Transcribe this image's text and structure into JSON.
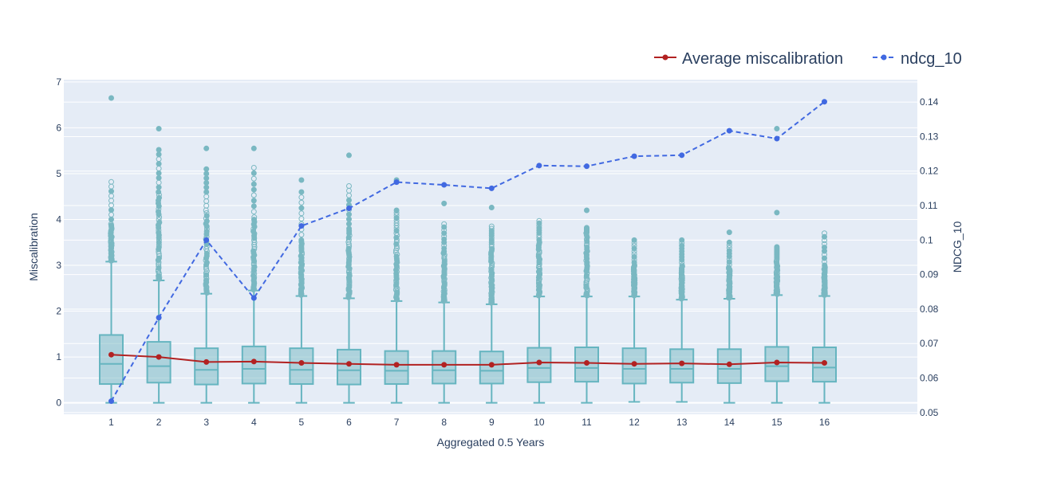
{
  "chart_data": {
    "type": "box",
    "xlabel": "Aggregated 0.5 Years",
    "ylabel": "Miscalibration",
    "y2label": "NDCG_10",
    "categories": [
      1,
      2,
      3,
      4,
      5,
      6,
      7,
      8,
      9,
      10,
      11,
      12,
      13,
      14,
      15,
      16
    ],
    "ylim": [
      -0.25,
      7.05
    ],
    "y2lim": [
      0.0495,
      0.1465
    ],
    "yticks": [
      0,
      1,
      2,
      3,
      4,
      5,
      6,
      7
    ],
    "y2ticks": [
      0.05,
      0.06,
      0.07,
      0.08,
      0.09,
      0.1,
      0.11,
      0.12,
      0.13,
      0.14
    ],
    "y2tick_labels": [
      "0.05",
      "0.06",
      "0.07",
      "0.08",
      "0.09",
      "0.1",
      "0.11",
      "0.12",
      "0.13",
      "0.14"
    ],
    "grid": true,
    "legend_position": "top-right",
    "colors": {
      "box": "#7ab8c2",
      "box_line": "#66b5c0",
      "box_fill": "rgba(118,184,194,0.5)",
      "avg": "#b22222",
      "ndcg": "#4169e1",
      "plot_bg": "#e5ecf6"
    },
    "boxes": [
      {
        "q1": 0.41,
        "median": 0.85,
        "q3": 1.48,
        "low": 0.0,
        "high": 3.08,
        "out_start": 3.1,
        "out_dense_end": 3.9,
        "out_max": 4.82,
        "extreme": 6.65
      },
      {
        "q1": 0.44,
        "median": 0.8,
        "q3": 1.33,
        "low": 0.0,
        "high": 2.67,
        "out_start": 2.7,
        "out_dense_end": 4.6,
        "out_max": 5.52,
        "extreme": 5.98
      },
      {
        "q1": 0.4,
        "median": 0.72,
        "q3": 1.19,
        "low": 0.0,
        "high": 2.38,
        "out_start": 2.4,
        "out_dense_end": 4.2,
        "out_max": 5.1,
        "extreme": 5.55
      },
      {
        "q1": 0.42,
        "median": 0.74,
        "q3": 1.23,
        "low": 0.0,
        "high": 2.45,
        "out_start": 2.47,
        "out_dense_end": 4.05,
        "out_max": 5.13,
        "extreme": 5.55
      },
      {
        "q1": 0.41,
        "median": 0.72,
        "q3": 1.19,
        "low": 0.0,
        "high": 2.33,
        "out_start": 2.35,
        "out_dense_end": 3.55,
        "out_max": 4.6,
        "extreme": 4.86
      },
      {
        "q1": 0.4,
        "median": 0.71,
        "q3": 1.16,
        "low": 0.0,
        "high": 2.28,
        "out_start": 2.3,
        "out_dense_end": 3.8,
        "out_max": 4.73,
        "extreme": 5.4
      },
      {
        "q1": 0.41,
        "median": 0.7,
        "q3": 1.13,
        "low": 0.0,
        "high": 2.22,
        "out_start": 2.25,
        "out_dense_end": 3.7,
        "out_max": 4.2,
        "extreme": 4.86
      },
      {
        "q1": 0.42,
        "median": 0.71,
        "q3": 1.13,
        "low": 0.0,
        "high": 2.19,
        "out_start": 2.22,
        "out_dense_end": 3.3,
        "out_max": 3.9,
        "extreme": 4.35
      },
      {
        "q1": 0.42,
        "median": 0.7,
        "q3": 1.12,
        "low": 0.0,
        "high": 2.15,
        "out_start": 2.18,
        "out_dense_end": 3.4,
        "out_max": 3.85,
        "extreme": 4.26
      },
      {
        "q1": 0.45,
        "median": 0.76,
        "q3": 1.2,
        "low": 0.0,
        "high": 2.32,
        "out_start": 2.34,
        "out_dense_end": 3.5,
        "out_max": 3.97,
        "extreme": 3.97
      },
      {
        "q1": 0.46,
        "median": 0.76,
        "q3": 1.21,
        "low": 0.0,
        "high": 2.32,
        "out_start": 2.34,
        "out_dense_end": 3.7,
        "out_max": 3.82,
        "extreme": 4.2
      },
      {
        "q1": 0.42,
        "median": 0.74,
        "q3": 1.19,
        "low": 0.02,
        "high": 2.32,
        "out_start": 2.34,
        "out_dense_end": 3.0,
        "out_max": 3.55,
        "extreme": 3.55
      },
      {
        "q1": 0.44,
        "median": 0.74,
        "q3": 1.17,
        "low": 0.02,
        "high": 2.25,
        "out_start": 2.27,
        "out_dense_end": 3.0,
        "out_max": 3.55,
        "extreme": 3.55
      },
      {
        "q1": 0.43,
        "median": 0.74,
        "q3": 1.17,
        "low": 0.0,
        "high": 2.27,
        "out_start": 2.29,
        "out_dense_end": 2.95,
        "out_max": 3.5,
        "extreme": 3.72
      },
      {
        "q1": 0.47,
        "median": 0.8,
        "q3": 1.22,
        "low": 0.0,
        "high": 2.35,
        "out_start": 2.37,
        "out_dense_end": 3.1,
        "out_max": 3.4,
        "extreme": 5.98
      },
      {
        "q1": 0.46,
        "median": 0.77,
        "q3": 1.21,
        "low": 0.0,
        "high": 2.33,
        "out_start": 2.35,
        "out_dense_end": 3.0,
        "out_max": 3.7,
        "extreme": 3.7
      }
    ],
    "extra_outliers": [
      [
        15,
        4.15
      ]
    ],
    "series": [
      {
        "name": "Average miscalibration",
        "axis": "y",
        "values": [
          1.05,
          1.0,
          0.89,
          0.9,
          0.87,
          0.85,
          0.83,
          0.83,
          0.83,
          0.88,
          0.87,
          0.85,
          0.86,
          0.84,
          0.88,
          0.87
        ]
      },
      {
        "name": "ndcg_10",
        "axis": "y2",
        "values": [
          0.0533,
          0.0775,
          0.1,
          0.0832,
          0.1041,
          0.1092,
          0.1168,
          0.116,
          0.115,
          0.1216,
          0.1214,
          0.1243,
          0.1246,
          0.1317,
          0.1294,
          0.1401
        ]
      }
    ]
  }
}
